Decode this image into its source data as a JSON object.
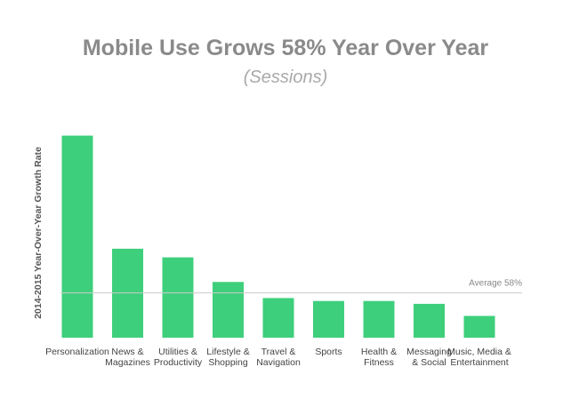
{
  "chart_data": {
    "type": "bar",
    "title": "Mobile Use Grows 58% Year Over Year",
    "subtitle": "(Sessions)",
    "ylabel": "2014-2015 Year-Over-Year Growth Rate",
    "xlabel": "",
    "categories": [
      [
        "Personalization"
      ],
      [
        "News &",
        "Magazines"
      ],
      [
        "Utilities &",
        "Productivity"
      ],
      [
        "Lifestyle &",
        "Shopping"
      ],
      [
        "Travel &",
        "Navigation"
      ],
      [
        "Sports"
      ],
      [
        "Health &",
        "Fitness"
      ],
      [
        "Messaging",
        "& Social"
      ],
      [
        "Music, Media &",
        "Entertainment"
      ]
    ],
    "values": [
      332,
      135,
      120,
      77,
      49,
      44,
      44,
      39,
      18
    ],
    "ylim": [
      -20,
      350
    ],
    "reference_line": {
      "value": 58,
      "label": "Average 58%"
    },
    "grid": false,
    "legend": "none",
    "bar_color": "#3ecf7c",
    "line_color": "#cccccc"
  }
}
